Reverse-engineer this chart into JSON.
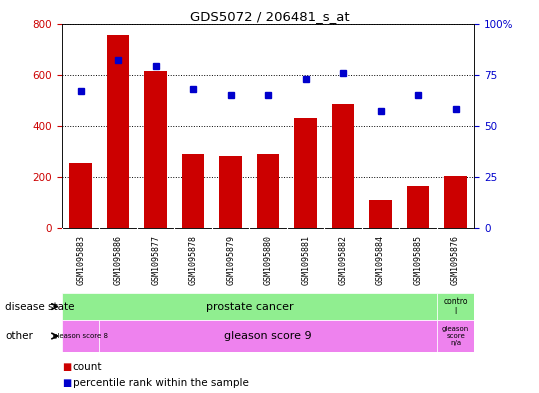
{
  "title": "GDS5072 / 206481_s_at",
  "samples": [
    "GSM1095883",
    "GSM1095886",
    "GSM1095877",
    "GSM1095878",
    "GSM1095879",
    "GSM1095880",
    "GSM1095881",
    "GSM1095882",
    "GSM1095884",
    "GSM1095885",
    "GSM1095876"
  ],
  "counts": [
    255,
    755,
    615,
    290,
    280,
    290,
    430,
    485,
    110,
    165,
    205
  ],
  "percentiles": [
    67,
    82,
    79,
    68,
    65,
    65,
    73,
    76,
    57,
    65,
    58
  ],
  "bar_color": "#cc0000",
  "dot_color": "#0000cc",
  "ylim_left": [
    0,
    800
  ],
  "ylim_right": [
    0,
    100
  ],
  "yticks_left": [
    0,
    200,
    400,
    600,
    800
  ],
  "yticks_right": [
    0,
    25,
    50,
    75,
    100
  ],
  "legend_count_label": "count",
  "legend_pct_label": "percentile rank within the sample",
  "row1_label": "disease state",
  "row2_label": "other",
  "bg_color": "#d3d3d3",
  "green_color": "#90ee90",
  "magenta_color": "#ee82ee"
}
